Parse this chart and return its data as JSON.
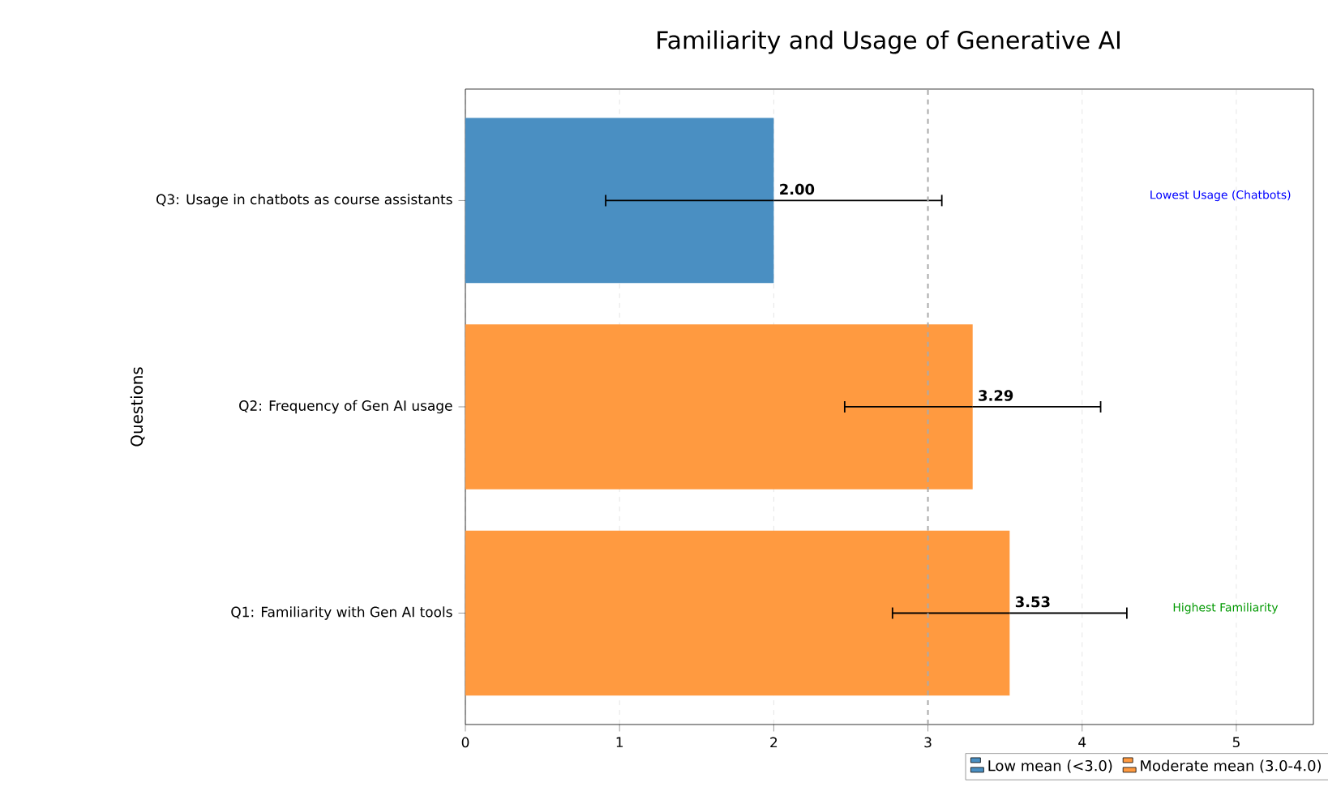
{
  "chart_data": {
    "type": "bar",
    "orientation": "horizontal",
    "title": "Familiarity and Usage of Generative AI",
    "ylabel": "Questions",
    "categories": [
      "Q3: Usage in chatbots as course assistants",
      "Q2: Frequency of Gen AI usage",
      "Q1: Familiarity with Gen AI tools"
    ],
    "series": [
      {
        "name": "Low mean (<3.0)",
        "color": "#4a8fc2",
        "values": [
          2.0,
          null,
          null
        ],
        "errors": [
          1.09,
          null,
          null
        ],
        "value_labels": [
          "2.00",
          null,
          null
        ]
      },
      {
        "name": "Moderate mean (3.0-4.0)",
        "color": "#ff9a40",
        "values": [
          null,
          3.29,
          3.53
        ],
        "errors": [
          null,
          0.83,
          0.76
        ],
        "value_labels": [
          null,
          "3.29",
          "3.53"
        ]
      }
    ],
    "xlim": [
      0,
      5.5
    ],
    "xticks": [
      0,
      1,
      2,
      3,
      4,
      5
    ],
    "grid": "x",
    "legend": "bottom right",
    "ref_lines": [
      {
        "axis": "x",
        "value": 3,
        "color": "#aaaaaa",
        "line_style": "dashed"
      }
    ],
    "annotations": [
      "Lowest Usage (Chatbots)",
      "Highest Familiarity"
    ]
  }
}
